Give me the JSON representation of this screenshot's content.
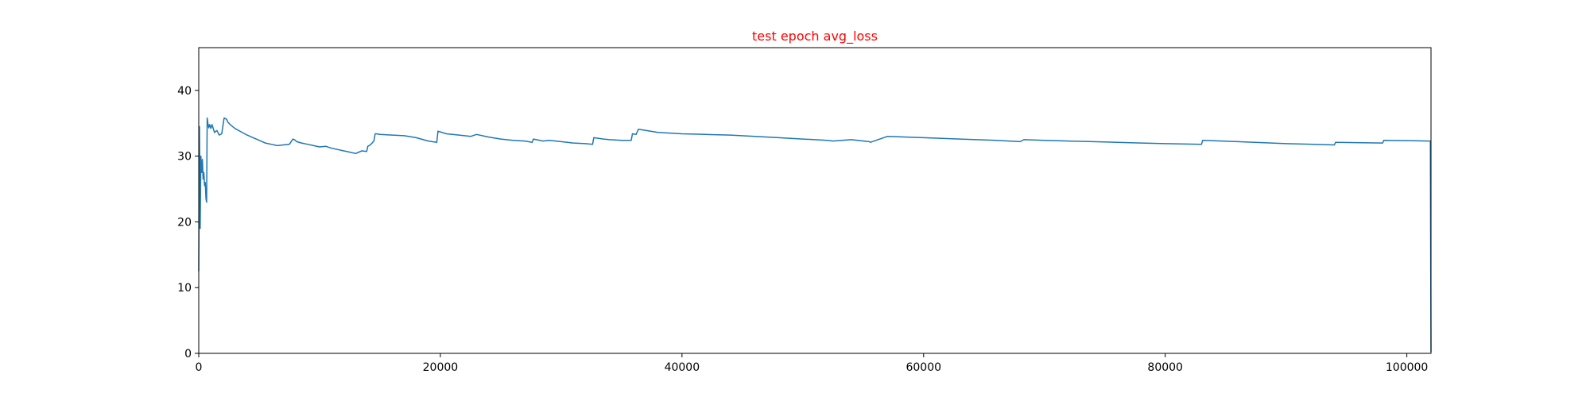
{
  "chart_data": {
    "type": "line",
    "title": "test epoch avg_loss",
    "title_color": "#ff0000",
    "xlabel": "",
    "ylabel": "",
    "xlim": [
      0,
      102000
    ],
    "ylim": [
      0,
      46.5
    ],
    "grid": false,
    "line_color": "#1f77b4",
    "xticks": [
      0,
      20000,
      40000,
      60000,
      80000,
      100000
    ],
    "yticks": [
      0,
      10,
      20,
      30,
      40
    ],
    "series": [
      {
        "x": [
          0,
          60,
          120,
          180,
          240,
          300,
          360,
          420,
          480,
          540,
          600,
          650,
          700,
          760,
          820,
          900,
          1000,
          1100,
          1300,
          1500,
          1700,
          1900,
          2100,
          2300,
          2400,
          2600,
          3000,
          3500,
          4000,
          4500,
          5000,
          5500,
          6000,
          6500,
          7000,
          7500,
          7800,
          8000,
          8100,
          8500,
          9000,
          9500,
          10000,
          10500,
          11000,
          11500,
          12000,
          12500,
          13000,
          13500,
          13900,
          14000,
          14200,
          14500,
          14600,
          14700,
          15000,
          16000,
          17000,
          18000,
          19000,
          19700,
          19800,
          20500,
          21000,
          22000,
          22500,
          23000,
          24000,
          25000,
          26000,
          27000,
          27600,
          27700,
          28500,
          29000,
          30000,
          31000,
          32000,
          32600,
          32700,
          33500,
          34000,
          35000,
          35800,
          35900,
          36200,
          36400,
          37000,
          38000,
          40000,
          42000,
          44000,
          46000,
          48000,
          50000,
          52000,
          52500,
          54000,
          55500,
          55600,
          57000,
          60000,
          63000,
          66000,
          68000,
          68300,
          70000,
          72000,
          74000,
          76000,
          78000,
          80000,
          83000,
          83100,
          86000,
          90000,
          94000,
          94100,
          98000,
          98100,
          101900,
          101950,
          102000
        ],
        "values": [
          12.5,
          34.5,
          19.0,
          30.0,
          27.5,
          29.5,
          26.5,
          27.5,
          25.5,
          26.0,
          23.5,
          23.0,
          35.8,
          35.0,
          34.3,
          34.8,
          34.2,
          34.8,
          33.6,
          33.9,
          33.2,
          33.4,
          35.8,
          35.6,
          35.2,
          34.8,
          34.2,
          33.7,
          33.2,
          32.8,
          32.4,
          32.0,
          31.8,
          31.6,
          31.7,
          31.8,
          32.6,
          32.4,
          32.2,
          32.0,
          31.8,
          31.6,
          31.4,
          31.5,
          31.2,
          31.0,
          30.8,
          30.6,
          30.4,
          30.8,
          30.7,
          31.5,
          31.7,
          32.3,
          33.4,
          33.4,
          33.3,
          33.2,
          33.1,
          32.8,
          32.3,
          32.1,
          33.8,
          33.4,
          33.3,
          33.1,
          33.0,
          33.3,
          32.9,
          32.6,
          32.4,
          32.3,
          32.1,
          32.6,
          32.3,
          32.4,
          32.2,
          32.0,
          31.9,
          31.8,
          32.8,
          32.6,
          32.5,
          32.4,
          32.4,
          33.4,
          33.3,
          34.1,
          33.9,
          33.6,
          33.4,
          33.3,
          33.2,
          33.0,
          32.8,
          32.6,
          32.4,
          32.3,
          32.5,
          32.2,
          32.1,
          33.0,
          32.8,
          32.6,
          32.4,
          32.2,
          32.5,
          32.4,
          32.3,
          32.2,
          32.1,
          32.0,
          31.9,
          31.8,
          32.4,
          32.2,
          31.9,
          31.7,
          32.1,
          32.0,
          32.4,
          32.3,
          32.3,
          0.2
        ]
      }
    ]
  }
}
